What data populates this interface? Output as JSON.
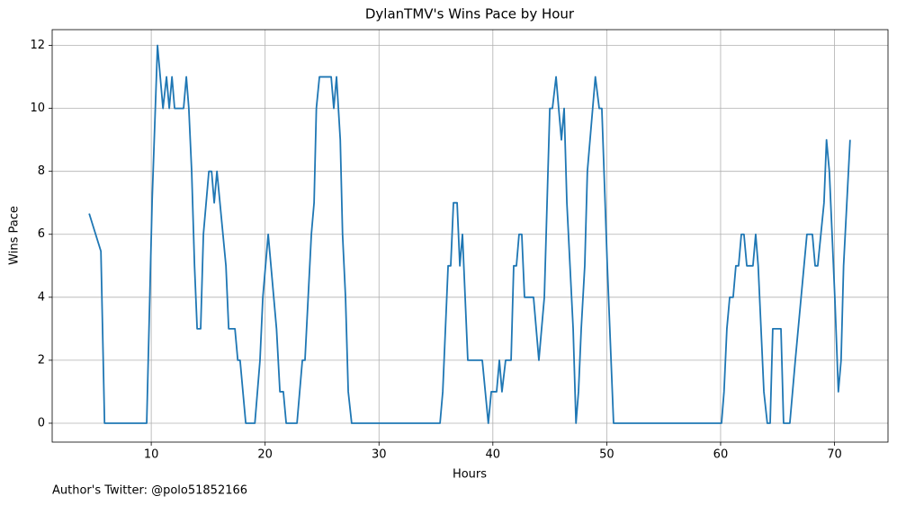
{
  "chart_data": {
    "type": "line",
    "title": "DylanTMV's Wins Pace by Hour",
    "xlabel": "Hours",
    "ylabel": "Wins Pace",
    "footnote": "Author's Twitter: @polo51852166",
    "color": "#1f77b4",
    "grid": true,
    "xlim": [
      1.3,
      74.7
    ],
    "ylim": [
      -0.6,
      12.5
    ],
    "xticks": [
      10,
      20,
      30,
      40,
      50,
      60,
      70
    ],
    "yticks": [
      0,
      2,
      4,
      6,
      8,
      10,
      12
    ],
    "x": [
      4.55,
      5.58,
      5.9,
      9.6,
      10.08,
      10.55,
      11.03,
      11.34,
      11.58,
      11.82,
      12.05,
      12.84,
      13.08,
      13.3,
      13.55,
      13.8,
      14.03,
      14.34,
      14.58,
      15.06,
      15.3,
      15.53,
      15.77,
      16.56,
      16.8,
      17.35,
      17.6,
      17.8,
      18.3,
      19.1,
      19.55,
      19.8,
      20.27,
      21.0,
      21.3,
      21.6,
      21.85,
      22.8,
      23.27,
      23.5,
      24.06,
      24.3,
      24.5,
      24.77,
      25.8,
      26.03,
      26.27,
      26.6,
      26.8,
      27.06,
      27.3,
      27.6,
      35.36,
      35.6,
      36.07,
      36.3,
      36.54,
      36.86,
      37.1,
      37.33,
      37.8,
      39.07,
      39.6,
      39.86,
      40.33,
      40.57,
      40.8,
      41.12,
      41.6,
      41.83,
      42.07,
      42.3,
      42.54,
      42.78,
      43.57,
      44.04,
      44.52,
      45.0,
      45.23,
      45.55,
      45.78,
      46.02,
      46.26,
      46.5,
      47.05,
      47.3,
      47.52,
      47.76,
      48.07,
      48.3,
      49.0,
      49.34,
      49.57,
      50.05,
      50.6,
      60.08,
      60.3,
      60.55,
      60.8,
      61.1,
      61.34,
      61.58,
      61.82,
      62.05,
      62.3,
      62.84,
      63.08,
      63.3,
      63.8,
      64.1,
      64.35,
      64.58,
      65.3,
      65.53,
      66.08,
      66.56,
      67.58,
      68.06,
      68.3,
      68.53,
      69.08,
      69.3,
      69.55,
      70.03,
      70.34,
      70.58,
      70.8,
      71.37
    ],
    "values": [
      6.66,
      5.46,
      0,
      0,
      7.1,
      12,
      10,
      11,
      10,
      11,
      10,
      10,
      11,
      10,
      8,
      5,
      3,
      3,
      6,
      8,
      8,
      7,
      8,
      5,
      3,
      3,
      2,
      2,
      0,
      0,
      2,
      4,
      6,
      3,
      1,
      1,
      0,
      0,
      2,
      2,
      6,
      7,
      10,
      11,
      11,
      10,
      11,
      9,
      6,
      4,
      1,
      0,
      0,
      1,
      5,
      5,
      7,
      7,
      5,
      6,
      2,
      2,
      0,
      1,
      1,
      2,
      1,
      2,
      2,
      5,
      5,
      6,
      6,
      4,
      4,
      2,
      4,
      10,
      10,
      11,
      10,
      9,
      10,
      7,
      3,
      0,
      1,
      3,
      5,
      8,
      11,
      10,
      10,
      5,
      0,
      0,
      1,
      3,
      4,
      4,
      5,
      5,
      6,
      6,
      5,
      5,
      6,
      5,
      1,
      0,
      0,
      3,
      3,
      0,
      0,
      2,
      6,
      6,
      5,
      5,
      7,
      9,
      8,
      4,
      1,
      2,
      5,
      9
    ]
  }
}
